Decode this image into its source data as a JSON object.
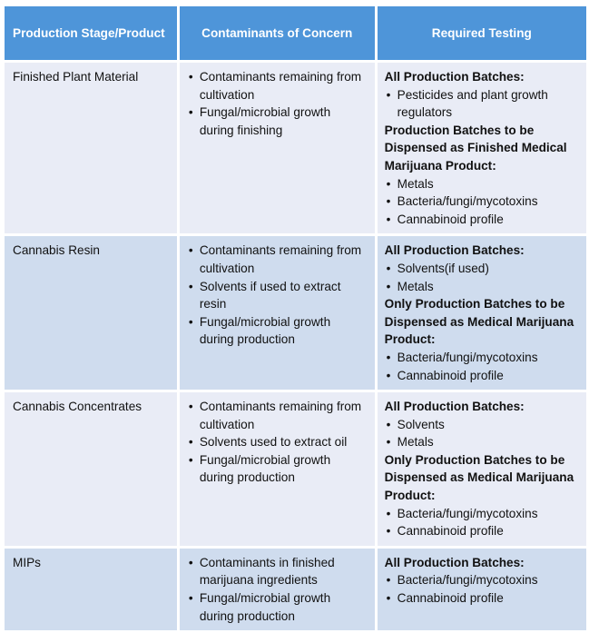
{
  "headers": [
    "Production Stage/Product",
    "Contaminants of Concern",
    "Required Testing"
  ],
  "colors": {
    "header": "#4e95d9",
    "row_light": "#e9ecf6",
    "row_dark": "#cfdcee"
  },
  "rows": [
    {
      "stage": "Finished Plant Material",
      "contaminants": [
        "Contaminants remaining from cultivation",
        "Fungal/microbial growth during finishing"
      ],
      "testing": [
        {
          "heading": "All Production Batches:",
          "items": [
            "Pesticides and plant growth regulators"
          ]
        },
        {
          "heading": "Production Batches to be Dispensed as Finished Medical Marijuana Product:",
          "items": [
            "Metals",
            "Bacteria/fungi/mycotoxins",
            "Cannabinoid profile"
          ]
        }
      ]
    },
    {
      "stage": "Cannabis Resin",
      "contaminants": [
        "Contaminants remaining from cultivation",
        "Solvents if used to extract resin",
        "Fungal/microbial growth during production"
      ],
      "testing": [
        {
          "heading": "All Production Batches:",
          "items": [
            "Solvents(if used)",
            "Metals"
          ]
        },
        {
          "heading": "Only Production Batches to be Dispensed as Medical Marijuana Product:",
          "items": [
            "Bacteria/fungi/mycotoxins",
            "Cannabinoid profile"
          ]
        }
      ]
    },
    {
      "stage": "Cannabis Concentrates",
      "contaminants": [
        "Contaminants remaining from cultivation",
        "Solvents used to extract oil",
        "Fungal/microbial growth during production"
      ],
      "testing": [
        {
          "heading": "All Production Batches:",
          "items": [
            "Solvents",
            "Metals"
          ]
        },
        {
          "heading": "Only Production Batches to be Dispensed as Medical Marijuana Product:",
          "items": [
            "Bacteria/fungi/mycotoxins",
            "Cannabinoid profile"
          ]
        }
      ]
    },
    {
      "stage": "MIPs",
      "contaminants": [
        "Contaminants in finished marijuana ingredients",
        "Fungal/microbial growth during production"
      ],
      "testing": [
        {
          "heading": "All Production Batches:",
          "items": [
            "Bacteria/fungi/mycotoxins",
            "Cannabinoid profile"
          ]
        }
      ]
    }
  ]
}
